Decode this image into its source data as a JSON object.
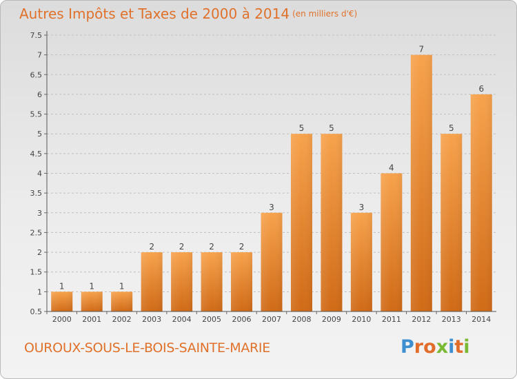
{
  "header": {
    "title": "Autres Impôts et Taxes de 2000 à 2014",
    "subtitle": "(en milliers d'€)"
  },
  "footer": {
    "commune": "OUROUX-SOUS-LE-BOIS-SAINTE-MARIE",
    "logo_letters": [
      "P",
      "r",
      "o",
      "x",
      "i",
      "t",
      "i"
    ],
    "logo_colors": [
      "#3d8fd0",
      "#e26d2a",
      "#e26d2a",
      "#7ab934",
      "#3d8fd0",
      "#e26d2a",
      "#7ab934"
    ]
  },
  "colors": {
    "bar_top": "#f7a24c",
    "bar_bottom": "#d06a16",
    "accent": "#e0712b",
    "grid": "#bfbfbf"
  },
  "chart_data": {
    "type": "bar",
    "title": "Autres Impôts et Taxes de 2000 à 2014",
    "subtitle": "(en milliers d'€)",
    "categories": [
      "2000",
      "2001",
      "2002",
      "2003",
      "2004",
      "2005",
      "2006",
      "2007",
      "2008",
      "2009",
      "2010",
      "2011",
      "2012",
      "2013",
      "2014"
    ],
    "values": [
      1,
      1,
      1,
      2,
      2,
      2,
      2,
      3,
      5,
      5,
      3,
      4,
      7,
      5,
      6
    ],
    "ylim": [
      0.5,
      7.5
    ],
    "yticks": [
      "0.5",
      "1",
      "1.5",
      "2",
      "2.5",
      "3",
      "3.5",
      "4",
      "4.5",
      "5",
      "5.5",
      "6",
      "6.5",
      "7",
      "7.5"
    ],
    "grid": true,
    "xlabel": "",
    "ylabel": ""
  }
}
